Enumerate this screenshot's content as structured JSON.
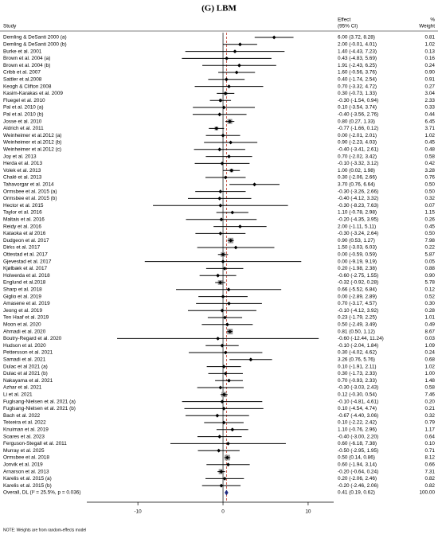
{
  "chart_data": {
    "type": "forest",
    "title": "(G) LBM",
    "study_header": "Study",
    "effect_header": [
      "Effect",
      "(95% CI)"
    ],
    "weight_header": [
      "%",
      "Weight"
    ],
    "note": "NOTE: Weights are from random-effects model",
    "xlim": [
      -16,
      13
    ],
    "xticks": [
      -10,
      0,
      10
    ],
    "studies": [
      "Demling & DeSanti 2000 (a)",
      "Demling & DeSanti 2000 (b)",
      "Burke et al. 2001",
      "Brown et al. 2004 (a)",
      "Brown et al. 2004 (b)",
      "Cribb et al. 2007",
      "Sattler et al.2008",
      "Keogh & Clifton 2008",
      "Kasim-Karakas et al. 2009",
      "Fluegel et al. 2010",
      "Pal et al. 2010 (a)",
      "Pal et al. 2010 (b)",
      "Josse et al. 2010",
      "Aldrich et al. 2011",
      "Weinheimer et al.2012 (a)",
      "Weinheimer et al.2012 (b)",
      "Weinheimer et al.2012  (c)",
      "Joy et al. 2013",
      "Herda et al. 2013",
      "Volek et al. 2013",
      "Chalé et al. 2013",
      "Tahavorgar et al. 2014",
      "Ormsbee et al. 2015 (a)",
      "Ormsbee et al. 2015 (b)",
      "Hector et al. 2015",
      "Taylor et al. 2016",
      "Maltais et al. 2016",
      "Reidy et al. 2016",
      "Kataoka et al 2016",
      "Dudgeon et al. 2017",
      "Dirks et al. 2017",
      "Ottestad et al. 2017",
      "Gjevestad et al. 2017",
      "Kjølbæk et al. 2017",
      "Holwerda et al. 2018",
      "Englund et al.2018",
      "Sharp et al. 2018",
      "Giglio et al. 2019",
      "Amasene et al. 2019",
      "Jeong et al. 2019",
      "Ten Haaf et al. 2019",
      "Moon et al. 2020",
      "Ahmadi et al. 2020",
      "Boutry-Regard et al. 2020",
      "Hudson et al. 2020",
      "Pettersson et al. 2021",
      "Samadi et al. 2021",
      "Dulac et al 2021 (a)",
      "Dulac et al 2021 (b)",
      "Nakayama et al. 2021",
      "Azhar et al. 2021",
      "Li et al. 2021",
      "Fuglsang-Nielsen et al. 2021 (a)",
      "Fuglsang-Nielsen et al. 2021 (b)",
      "Bach et al. 2022",
      "Teixeira et al. 2022",
      "Knuiman et al. 2019",
      "Soares et al. 2023",
      "Ferguson-Stegall et al. 2011",
      "Murray et al. 2025",
      "Ormsbee et al. 2018",
      "Jonvik et al. 2019",
      "Arnarson et al. 2013",
      "Karelis et al. 2015 (a)",
      "Karelis et al. 2015 (b)"
    ],
    "effects": [
      6.0,
      2.0,
      1.4,
      0.43,
      1.91,
      1.6,
      0.4,
      0.7,
      0.3,
      -0.3,
      0.1,
      -0.4,
      0.8,
      -0.77,
      0.0,
      0.9,
      -0.4,
      0.7,
      -0.1,
      1.0,
      0.3,
      3.7,
      -0.3,
      -0.4,
      -0.3,
      1.1,
      -0.2,
      2.0,
      -0.3,
      0.9,
      1.5,
      0.0,
      0.0,
      0.2,
      -0.6,
      -0.32,
      0.66,
      0.0,
      0.7,
      -0.1,
      0.23,
      0.5,
      0.81,
      -0.6,
      -0.1,
      0.3,
      3.26,
      0.1,
      0.3,
      0.7,
      -0.3,
      0.12,
      -0.1,
      0.1,
      -0.67,
      0.1,
      1.1,
      -0.4,
      0.6,
      -0.5,
      0.5,
      0.6,
      -0.2,
      0.2,
      -0.2
    ],
    "lower": [
      3.72,
      -0.01,
      -4.43,
      -4.83,
      -2.43,
      -0.56,
      -1.74,
      -3.32,
      -0.73,
      -1.54,
      -3.54,
      -3.56,
      0.27,
      -1.66,
      -2.01,
      -2.23,
      -3.41,
      -2.02,
      -3.32,
      0.02,
      -2.06,
      0.76,
      -3.26,
      -4.12,
      -8.23,
      -0.78,
      -4.35,
      -1.11,
      -3.24,
      0.53,
      -3.03,
      -0.59,
      -9.19,
      -1.98,
      -2.75,
      -0.92,
      -5.52,
      -2.89,
      -3.17,
      -4.12,
      -1.79,
      -2.49,
      0.5,
      -12.44,
      -2.04,
      -4.02,
      0.76,
      -1.91,
      -1.73,
      -0.93,
      -3.03,
      -0.3,
      -4.81,
      -4.54,
      -4.4,
      -2.22,
      -0.76,
      -3.0,
      -6.18,
      -2.95,
      0.14,
      -1.94,
      -0.64,
      -2.06,
      -2.46
    ],
    "upper": [
      8.28,
      4.01,
      7.23,
      5.69,
      6.25,
      3.76,
      2.54,
      4.72,
      1.33,
      0.94,
      3.74,
      2.76,
      1.33,
      0.12,
      2.01,
      4.03,
      2.61,
      3.42,
      3.12,
      1.98,
      2.66,
      6.64,
      2.66,
      3.32,
      7.63,
      2.98,
      3.95,
      5.11,
      2.64,
      1.27,
      6.03,
      0.59,
      9.19,
      2.38,
      1.55,
      0.28,
      6.84,
      2.89,
      4.57,
      3.92,
      2.25,
      3.49,
      1.12,
      11.24,
      1.84,
      4.62,
      5.76,
      2.11,
      2.33,
      2.33,
      2.43,
      0.54,
      4.61,
      4.74,
      3.06,
      2.42,
      2.96,
      2.2,
      7.38,
      1.95,
      0.86,
      3.14,
      0.24,
      2.46,
      2.06
    ],
    "value_labels": [
      "6.00 (3.72, 8.28)",
      "2.00 (-0.01, 4.01)",
      "1.40 (-4.43, 7.23)",
      "0.43 (-4.83, 5.69)",
      "1.91 (-2.43, 6.25)",
      "1.60 (-0.56, 3.76)",
      "0.40 (-1.74, 2.54)",
      "0.70 (-3.32, 4.72)",
      "0.30 (-0.73, 1.33)",
      "-0.30 (-1.54, 0.94)",
      "0.10 (-3.54, 3.74)",
      "-0.40 (-3.56, 2.76)",
      "0.80 (0.27, 1.33)",
      "-0.77 (-1.66, 0.12)",
      "0.00 (-2.01, 2.01)",
      "0.90 (-2.23, 4.03)",
      "-0.40 (-3.41, 2.61)",
      "0.70 (-2.02, 3.42)",
      "-0.10 (-3.32, 3.12)",
      "1.00 (0.02, 1.98)",
      "0.30 (-2.06, 2.66)",
      "3.70 (0.76, 6.64)",
      "-0.30 (-3.26, 2.66)",
      "-0.40 (-4.12, 3.32)",
      "-0.30 (-8.23, 7.63)",
      "1.10 (-0.78, 2.98)",
      "-0.20 (-4.35, 3.95)",
      "2.00 (-1.11, 5.11)",
      "-0.30 (-3.24, 2.64)",
      "0.90 (0.53, 1.27)",
      "1.50 (-3.03, 6.03)",
      "0.00 (-0.59, 0.59)",
      "0.00 (-9.19, 9.19)",
      "0.20 (-1.98, 2.38)",
      "-0.60 (-2.75, 1.55)",
      "-0.32 (-0.92, 0.28)",
      "0.66 (-5.52, 6.84)",
      "0.00 (-2.89, 2.89)",
      "0.70 (-3.17, 4.57)",
      "-0.10 (-4.12, 3.92)",
      "0.23 (-1.79, 2.25)",
      "0.50 (-2.49, 3.49)",
      "0.81 (0.50, 1.12)",
      "-0.60 (-12.44, 11.24)",
      "-0.10 (-2.04, 1.84)",
      "0.30 (-4.02, 4.62)",
      "3.26 (0.76, 5.76)",
      "0.10 (-1.91, 2.11)",
      "0.30 (-1.73, 2.33)",
      "0.70 (-0.93, 2.33)",
      "-0.30 (-3.03, 2.43)",
      "0.12 (-0.30, 0.54)",
      "-0.10 (-4.81, 4.61)",
      "0.10 (-4.54, 4.74)",
      "-0.67 (-4.40, 3.06)",
      "0.10 (-2.22, 2.42)",
      "1.10 (-0.76, 2.96)",
      "-0.40 (-3.00, 2.20)",
      "0.60 (-6.18, 7.38)",
      "-0.50 (-2.95, 1.95)",
      "0.50 (0.14, 0.86)",
      "0.60 (-1.94, 3.14)",
      "-0.20 (-0.64, 0.24)",
      "0.20 (-2.06, 2.46)",
      "-0.20 (-2.46, 2.06)"
    ],
    "weights": [
      0.81,
      1.02,
      0.13,
      0.16,
      0.24,
      0.9,
      0.91,
      0.27,
      3.04,
      2.33,
      0.33,
      0.44,
      6.45,
      3.71,
      1.02,
      0.45,
      0.48,
      0.58,
      0.42,
      3.28,
      0.76,
      0.5,
      0.5,
      0.32,
      0.07,
      1.15,
      0.26,
      0.45,
      0.5,
      7.98,
      0.22,
      5.87,
      0.05,
      0.88,
      0.9,
      5.78,
      0.12,
      0.52,
      0.3,
      0.28,
      1.01,
      0.49,
      8.67,
      0.03,
      1.09,
      0.24,
      0.68,
      1.02,
      1.0,
      1.48,
      0.58,
      7.46,
      0.2,
      0.21,
      0.32,
      0.79,
      1.17,
      0.64,
      0.1,
      0.71,
      8.12,
      0.66,
      7.31,
      0.82,
      0.82
    ],
    "weight_labels": [
      "0.81",
      "1.02",
      "0.13",
      "0.16",
      "0.24",
      "0.90",
      "0.91",
      "0.27",
      "3.04",
      "2.33",
      "0.33",
      "0.44",
      "6.45",
      "3.71",
      "1.02",
      "0.45",
      "0.48",
      "0.58",
      "0.42",
      "3.28",
      "0.76",
      "0.50",
      "0.50",
      "0.32",
      "0.07",
      "1.15",
      "0.26",
      "0.45",
      "0.50",
      "7.98",
      "0.22",
      "5.87",
      "0.05",
      "0.88",
      "0.90",
      "5.78",
      "0.12",
      "0.52",
      "0.30",
      "0.28",
      "1.01",
      "0.49",
      "8.67",
      "0.03",
      "1.09",
      "0.24",
      "0.68",
      "1.02",
      "1.00",
      "1.48",
      "0.58",
      "7.46",
      "0.20",
      "0.21",
      "0.32",
      "0.79",
      "1.17",
      "0.64",
      "0.10",
      "0.71",
      "8.12",
      "0.66",
      "7.31",
      "0.82",
      "0.82"
    ],
    "overall": {
      "name": "Overall, DL (I² = 25.5%, p = 0.036)",
      "effect": 0.41,
      "lower": 0.19,
      "upper": 0.62,
      "label": "0.41 (0.19, 0.62)",
      "weight": 100,
      "weight_label": "100.00",
      "color": "#1f2a80"
    },
    "point_color": "#000000",
    "box_color": "#9a9a9a",
    "overall_line_color": "#c0392b"
  }
}
